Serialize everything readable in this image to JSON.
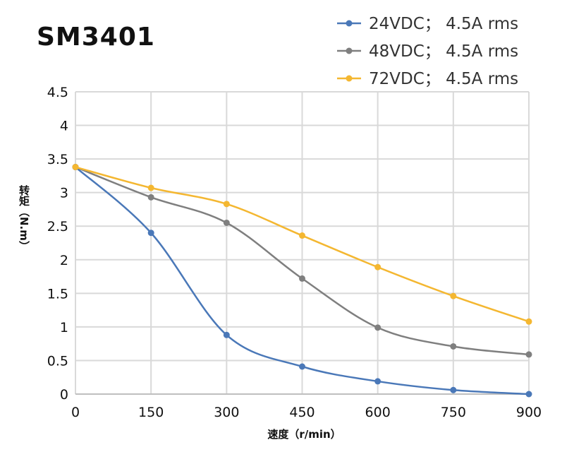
{
  "chart_data": {
    "type": "line",
    "title": "SM3401",
    "xlabel": "速度（r/min）",
    "ylabel": "转矩（N.m）",
    "xlim": [
      0,
      900
    ],
    "ylim": [
      0,
      4.5
    ],
    "xticks": [
      "0",
      "150",
      "300",
      "450",
      "600",
      "750",
      "900"
    ],
    "yticks": [
      "0",
      "0.5",
      "1",
      "1.5",
      "2",
      "2.5",
      "3",
      "3.5",
      "4",
      "4.5"
    ],
    "grid": true,
    "legend_position": "top-right",
    "x": [
      0,
      150,
      300,
      450,
      600,
      750,
      900
    ],
    "series": [
      {
        "name": "24VDC；  4.5A rms",
        "color": "#4a78b8",
        "values": [
          3.38,
          2.4,
          0.88,
          0.41,
          0.19,
          0.06,
          0
        ]
      },
      {
        "name": "48VDC；  4.5A rms",
        "color": "#7f7f7f",
        "values": [
          3.38,
          2.93,
          2.55,
          1.72,
          0.99,
          0.71,
          0.59
        ]
      },
      {
        "name": "72VDC；  4.5A rms",
        "color": "#f4b731",
        "values": [
          3.38,
          3.07,
          2.83,
          2.36,
          1.89,
          1.46,
          1.08
        ]
      }
    ]
  }
}
